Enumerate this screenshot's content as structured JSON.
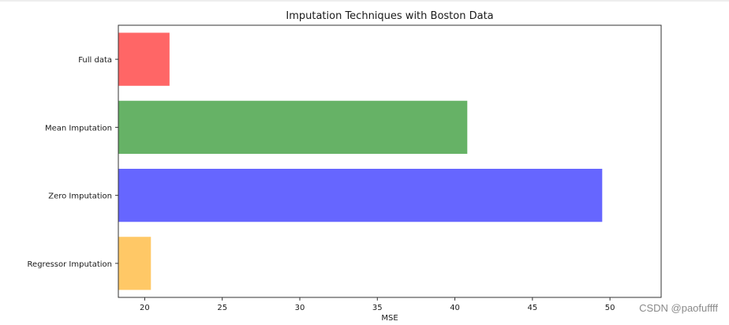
{
  "chart_data": {
    "type": "bar",
    "orientation": "horizontal",
    "title": "Imputation Techniques with Boston Data",
    "xlabel": "MSE",
    "ylabel": "",
    "categories": [
      "Full data",
      "Mean Imputation",
      "Zero Imputation",
      "Regressor Imputation"
    ],
    "values": [
      21.6,
      40.8,
      49.5,
      20.4
    ],
    "colors": [
      "#ff6666",
      "#66b266",
      "#6666ff",
      "#ffc866"
    ],
    "xlim": [
      18.3,
      53.3
    ],
    "xticks": [
      20,
      25,
      30,
      35,
      40,
      45,
      50
    ],
    "grid": false,
    "legend": "none"
  },
  "watermark": "CSDN @paofuffff"
}
